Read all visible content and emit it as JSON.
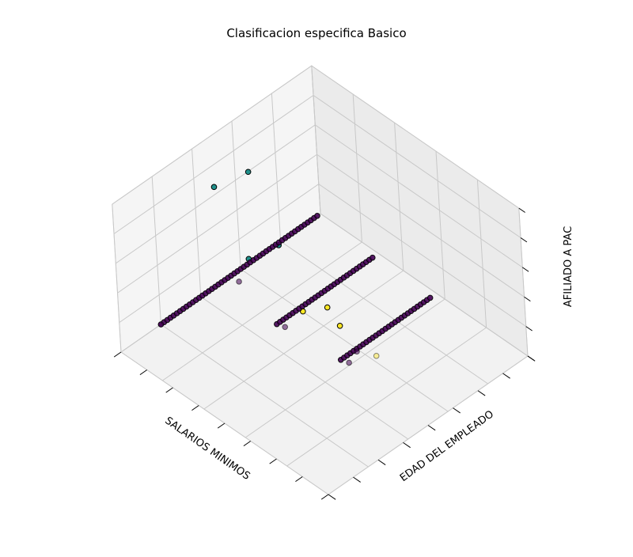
{
  "chart_data": {
    "type": "scatter",
    "title": "Clasificacion especifica Basico",
    "xlabel": "SALARIOS MINIMOS",
    "ylabel": "EDAD DEL EMPLEADO",
    "zlabel": "AFILIADO A PAC",
    "grid": true,
    "projection": "3d",
    "colors": {
      "class_0": "#440154",
      "class_1": "#21918c",
      "class_2": "#fde725"
    },
    "legend": "none",
    "series": [
      {
        "values_note": "",
        "points": [
          {
            "x": 1,
            "y": 2,
            "z": 6
          },
          {
            "x": 2.1,
            "y": 2.5,
            "z": 5.8
          },
          {
            "x": 2.4,
            "y": 1.6,
            "z": 6
          },
          {
            "x": 8.6,
            "y": 5.3,
            "z": 6
          },
          {
            "x": 8.9,
            "y": 3.9,
            "z": 6
          },
          {
            "x": 5.3,
            "y": 3.4,
            "z": 6
          },
          {
            "x": 5.7,
            "y": 2.3,
            "z": 5.8
          },
          {
            "x": 2.6,
            "y": 5.2,
            "z": 1.4
          }
        ]
      }
    ],
    "lines": [
      {
        "x": 10,
        "y_from": 2,
        "y_to": 9.9,
        "z": 0,
        "note": ""
      },
      {
        "x": 7.2,
        "y_from": 4.9,
        "y_to": 9.8,
        "z": 0,
        "note": ""
      },
      {
        "x": 4.4,
        "y_from": 5.2,
        "y_to": 9.7,
        "z": 0,
        "note": ""
      }
    ]
  }
}
